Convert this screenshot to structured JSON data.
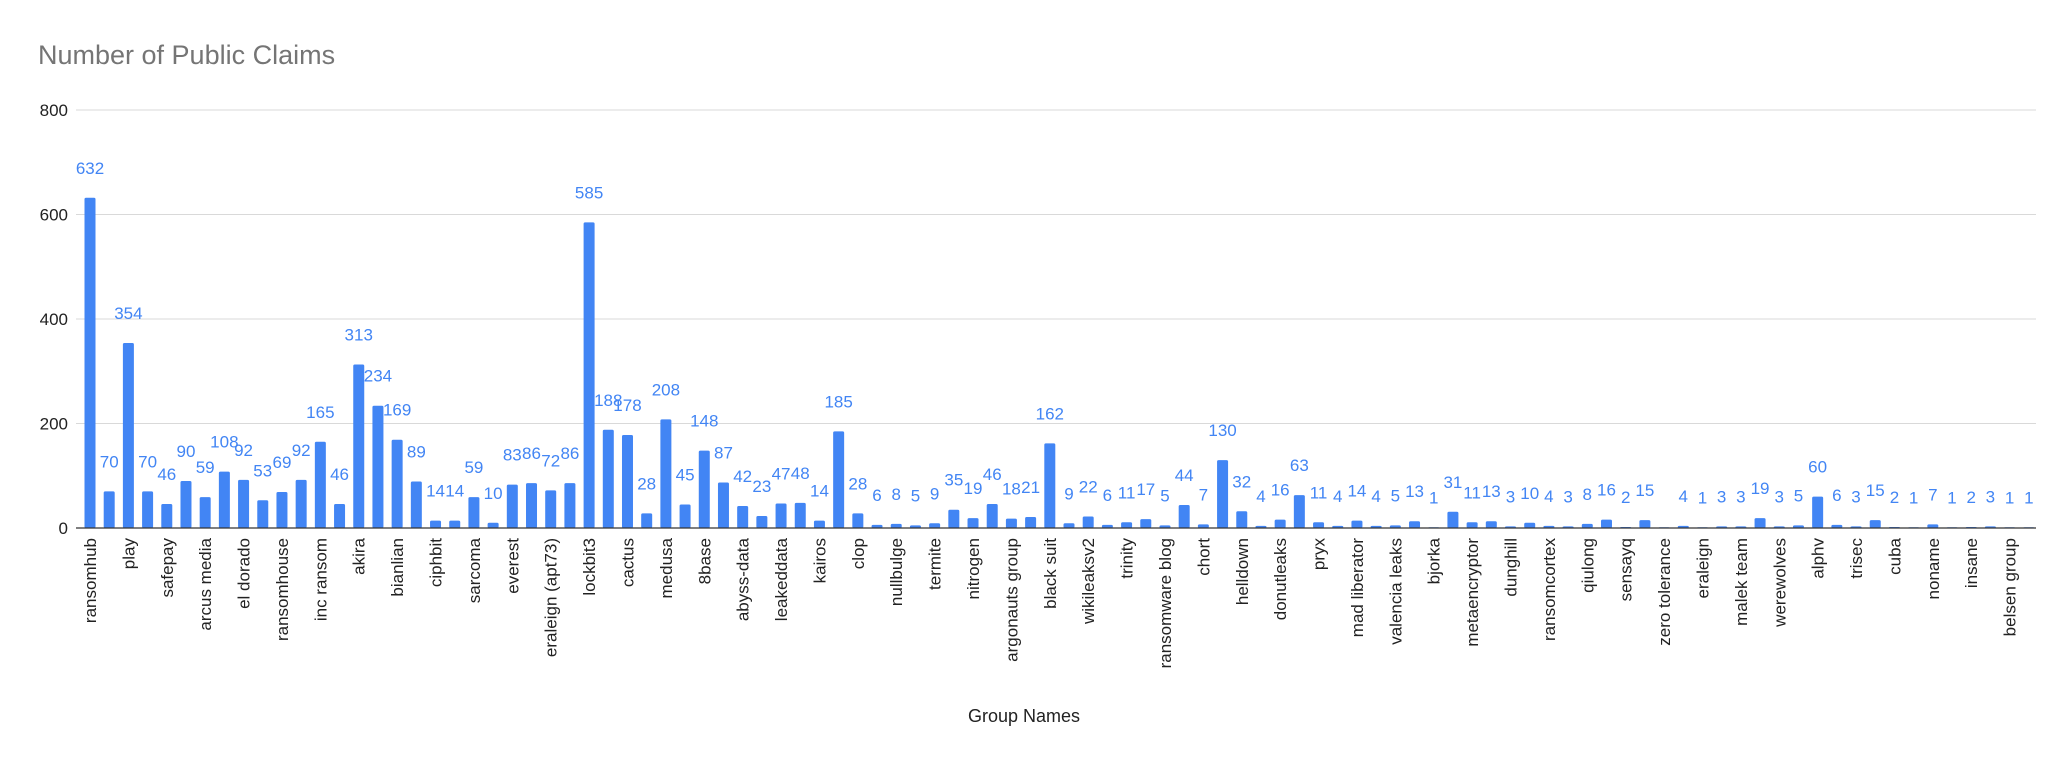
{
  "chart_data": {
    "type": "bar",
    "title": "Number of Public Claims",
    "xlabel": "Group Names",
    "ylabel": "",
    "ylim": [
      0,
      800
    ],
    "yticks": [
      0,
      200,
      400,
      600,
      800
    ],
    "grid": true,
    "legend": "none",
    "colors": {
      "bar": "#4285f4",
      "label": "#4285f4",
      "grid": "#d9d9d9",
      "axis": "#333333"
    },
    "categories": [
      "ransomhub",
      "",
      "play",
      "",
      "safepay",
      "",
      "arcus media",
      "",
      "el dorado",
      "",
      "ransomhouse",
      "",
      "inc ransom",
      "",
      "akira",
      "",
      "bianlian",
      "",
      "ciphbit",
      "",
      "sarcoma",
      "",
      "everest",
      "",
      "eraleign (apt73)",
      "",
      "lockbit3",
      "",
      "cactus",
      "",
      "medusa",
      "",
      "8base",
      "",
      "abyss-data",
      "",
      "leakeddata",
      "",
      "kairos",
      "",
      "clop",
      "",
      "nullbulge",
      "",
      "termite",
      "",
      "nitrogen",
      "",
      "argonauts group",
      "",
      "black suit",
      "",
      "wikileaksv2",
      "",
      "trinity",
      "",
      "ransomware blog",
      "",
      "chort",
      "",
      "helldown",
      "",
      "donutleaks",
      "",
      "pryx",
      "",
      "mad liberator",
      "",
      "valencia leaks",
      "",
      "bjorka",
      "",
      "metaencryptor",
      "",
      "dunghill",
      "",
      "ransomcortex",
      "",
      "qiulong",
      "",
      "sensayq",
      "",
      "zero tolerance",
      "",
      "eraleign",
      "",
      "malek team",
      "",
      "werewolves",
      "",
      "alphv",
      "",
      "trisec",
      "",
      "cuba",
      "",
      "noname",
      "",
      "insane",
      "",
      "belsen group",
      ""
    ],
    "values": [
      632,
      70,
      354,
      70,
      46,
      90,
      59,
      108,
      92,
      53,
      69,
      92,
      165,
      46,
      313,
      234,
      169,
      89,
      14,
      14,
      59,
      10,
      83,
      86,
      72,
      86,
      585,
      188,
      178,
      28,
      208,
      45,
      148,
      87,
      42,
      23,
      47,
      48,
      14,
      185,
      28,
      6,
      8,
      5,
      9,
      35,
      19,
      46,
      18,
      21,
      162,
      9,
      22,
      6,
      11,
      17,
      5,
      44,
      7,
      130,
      32,
      4,
      16,
      63,
      11,
      4,
      14,
      4,
      5,
      13,
      1,
      31,
      11,
      13,
      3,
      10,
      4,
      3,
      8,
      16,
      2,
      15,
      1,
      4,
      1,
      3,
      3,
      19,
      3,
      5,
      60,
      6,
      3,
      15,
      2,
      1,
      7,
      1,
      2,
      3,
      1,
      1
    ],
    "labels": [
      "632",
      "70",
      "354",
      "70",
      "46",
      "90",
      "59",
      "108",
      "92",
      "53",
      "69",
      "92",
      "165",
      "46",
      "313",
      "234",
      "169",
      "89",
      "14",
      "14",
      "59",
      "10",
      "83",
      "86",
      "72",
      "86",
      "585",
      "188",
      "178",
      "28",
      "208",
      "45",
      "148",
      "87",
      "42",
      "23",
      "47",
      "48",
      "14",
      "185",
      "28",
      "6",
      "8",
      "5",
      "9",
      "35",
      "19",
      "46",
      "18",
      "21",
      "162",
      "9",
      "22",
      "6",
      "11",
      "17",
      "5",
      "44",
      "7",
      "130",
      "32",
      "4",
      "16",
      "63",
      "11",
      "4",
      "14",
      "4",
      "5",
      "13",
      "1",
      "31",
      "11",
      "13",
      "3",
      "10",
      "4",
      "3",
      "8",
      "16",
      "2",
      "15",
      "",
      "4",
      "1",
      "3",
      "3",
      "19",
      "3",
      "5",
      "60",
      "6",
      "3",
      "15",
      "2",
      "1",
      "7",
      "1",
      "2",
      "3",
      "1",
      "1"
    ]
  }
}
